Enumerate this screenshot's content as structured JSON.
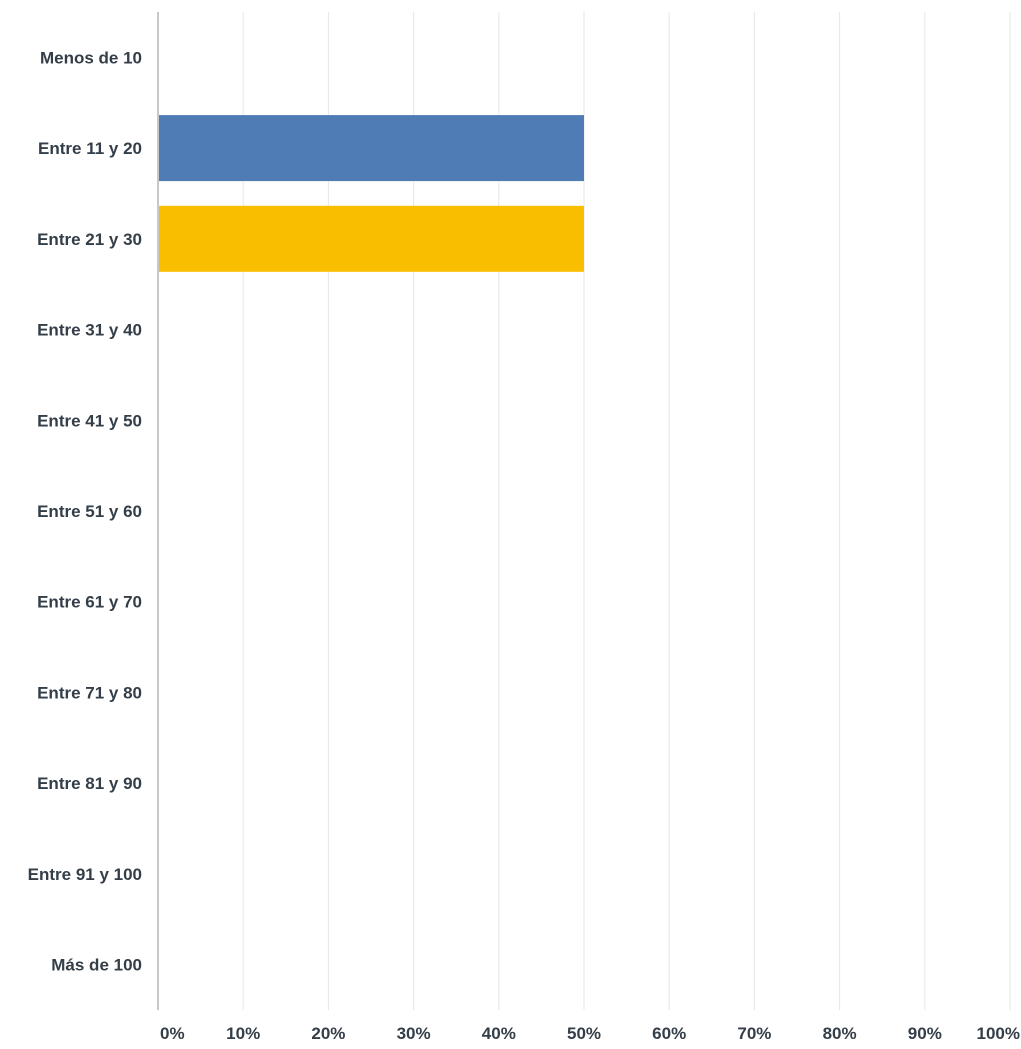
{
  "chart_data": {
    "type": "bar",
    "orientation": "horizontal",
    "categories": [
      "Menos de 10",
      "Entre 11 y 20",
      "Entre 21 y 30",
      "Entre 31 y 40",
      "Entre 41 y 50",
      "Entre 51 y 60",
      "Entre 61 y 70",
      "Entre 71 y 80",
      "Entre 81 y 90",
      "Entre 91 y 100",
      "Más de 100"
    ],
    "values": [
      0,
      50,
      50,
      0,
      0,
      0,
      0,
      0,
      0,
      0,
      0
    ],
    "bar_colors": [
      "#507cb6",
      "#507cb6",
      "#f9be00",
      "#507cb6",
      "#507cb6",
      "#507cb6",
      "#507cb6",
      "#507cb6",
      "#507cb6",
      "#507cb6",
      "#507cb6"
    ],
    "xlim": [
      0,
      100
    ],
    "xticks": [
      0,
      10,
      20,
      30,
      40,
      50,
      60,
      70,
      80,
      90,
      100
    ],
    "xtick_labels": [
      "0%",
      "10%",
      "20%",
      "30%",
      "40%",
      "50%",
      "60%",
      "70%",
      "80%",
      "90%",
      "100%"
    ],
    "grid": true,
    "title": "",
    "xlabel": "",
    "ylabel": ""
  },
  "colors": {
    "text": "#333e48",
    "grid": "#e6e6e6",
    "axis": "#c8c8c8"
  }
}
